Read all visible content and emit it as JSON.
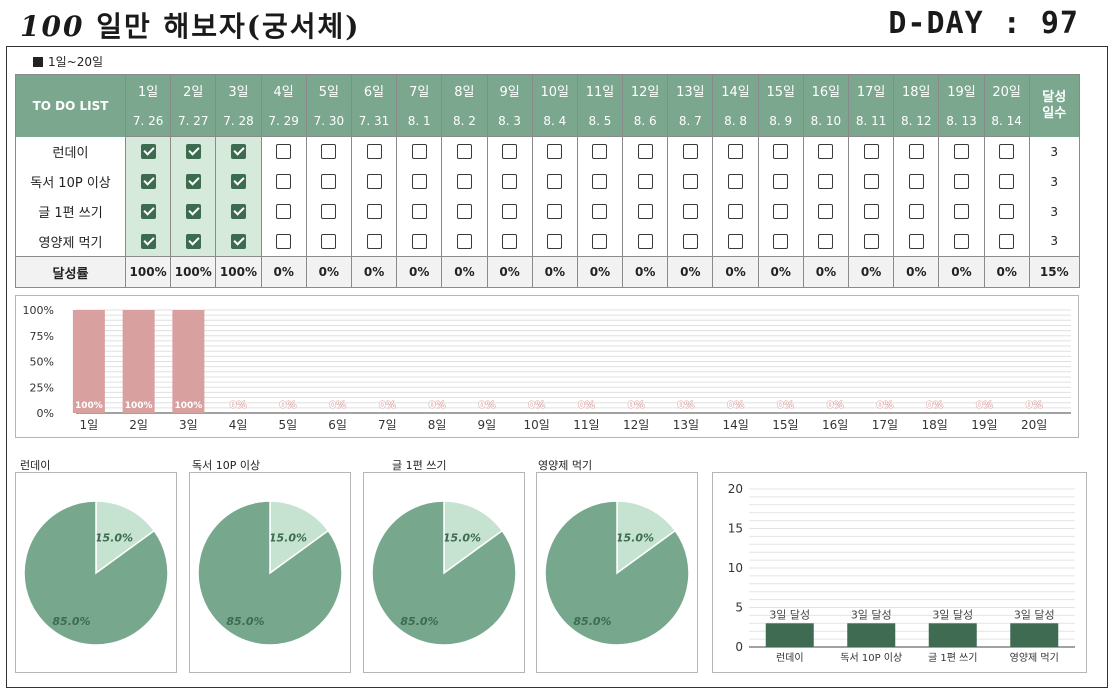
{
  "header": {
    "title_num": "100",
    "title_text": "일만 해보자(궁서체)",
    "dday": "D-DAY : 97"
  },
  "range_label": "1일~20일",
  "table": {
    "todo_header": "TO DO LIST",
    "achieve_header_1": "달성",
    "achieve_header_2": "일수",
    "days": [
      "1일",
      "2일",
      "3일",
      "4일",
      "5일",
      "6일",
      "7일",
      "8일",
      "9일",
      "10일",
      "11일",
      "12일",
      "13일",
      "14일",
      "15일",
      "16일",
      "17일",
      "18일",
      "19일",
      "20일"
    ],
    "dates": [
      "7. 26",
      "7. 27",
      "7. 28",
      "7. 29",
      "7. 30",
      "7. 31",
      "8. 1",
      "8. 2",
      "8. 3",
      "8. 4",
      "8. 5",
      "8. 6",
      "8. 7",
      "8. 8",
      "8. 9",
      "8. 10",
      "8. 11",
      "8. 12",
      "8. 13",
      "8. 14"
    ],
    "tasks": [
      {
        "name": "런데이",
        "checks": [
          true,
          true,
          true,
          false,
          false,
          false,
          false,
          false,
          false,
          false,
          false,
          false,
          false,
          false,
          false,
          false,
          false,
          false,
          false,
          false
        ],
        "count": "3"
      },
      {
        "name": "독서 10P 이상",
        "checks": [
          true,
          true,
          true,
          false,
          false,
          false,
          false,
          false,
          false,
          false,
          false,
          false,
          false,
          false,
          false,
          false,
          false,
          false,
          false,
          false
        ],
        "count": "3"
      },
      {
        "name": "글 1편 쓰기",
        "checks": [
          true,
          true,
          true,
          false,
          false,
          false,
          false,
          false,
          false,
          false,
          false,
          false,
          false,
          false,
          false,
          false,
          false,
          false,
          false,
          false
        ],
        "count": "3"
      },
      {
        "name": "영양제 먹기",
        "checks": [
          true,
          true,
          true,
          false,
          false,
          false,
          false,
          false,
          false,
          false,
          false,
          false,
          false,
          false,
          false,
          false,
          false,
          false,
          false,
          false
        ],
        "count": "3"
      }
    ],
    "rate_label": "달성률",
    "rates": [
      "100%",
      "100%",
      "100%",
      "0%",
      "0%",
      "0%",
      "0%",
      "0%",
      "0%",
      "0%",
      "0%",
      "0%",
      "0%",
      "0%",
      "0%",
      "0%",
      "0%",
      "0%",
      "0%",
      "0%"
    ],
    "total_rate": "15%"
  },
  "colors": {
    "header_green": "#7aa78e",
    "check_green": "#3d6b4f",
    "bar_pink": "#d9a0a0",
    "pie_dark": "#77a88e",
    "pie_light": "#c5e3d0",
    "bar_dark_green": "#3e6b52"
  },
  "chart_data": [
    {
      "type": "bar",
      "categories": [
        "1일",
        "2일",
        "3일",
        "4일",
        "5일",
        "6일",
        "7일",
        "8일",
        "9일",
        "10일",
        "11일",
        "12일",
        "13일",
        "14일",
        "15일",
        "16일",
        "17일",
        "18일",
        "19일",
        "20일"
      ],
      "values": [
        100,
        100,
        100,
        0,
        0,
        0,
        0,
        0,
        0,
        0,
        0,
        0,
        0,
        0,
        0,
        0,
        0,
        0,
        0,
        0
      ],
      "data_labels": [
        "100%",
        "100%",
        "100%",
        "0%",
        "0%",
        "0%",
        "0%",
        "0%",
        "0%",
        "0%",
        "0%",
        "0%",
        "0%",
        "0%",
        "0%",
        "0%",
        "0%",
        "0%",
        "0%",
        "0%"
      ],
      "yticks": [
        "0%",
        "25%",
        "50%",
        "75%",
        "100%"
      ],
      "ylim": [
        0,
        100
      ]
    },
    {
      "type": "pie",
      "title": "런데이",
      "values": [
        15.0,
        85.0
      ],
      "labels": [
        "15.0%",
        "85.0%"
      ]
    },
    {
      "type": "pie",
      "title": "독서 10P 이상",
      "values": [
        15.0,
        85.0
      ],
      "labels": [
        "15.0%",
        "85.0%"
      ]
    },
    {
      "type": "pie",
      "title": "글 1편 쓰기",
      "values": [
        15.0,
        85.0
      ],
      "labels": [
        "15.0%",
        "85.0%"
      ]
    },
    {
      "type": "pie",
      "title": "영양제 먹기",
      "values": [
        15.0,
        85.0
      ],
      "labels": [
        "15.0%",
        "85.0%"
      ]
    },
    {
      "type": "bar",
      "categories": [
        "런데이",
        "독서 10P 이상",
        "글 1편 쓰기",
        "영양제 먹기"
      ],
      "values": [
        3,
        3,
        3,
        3
      ],
      "data_labels": [
        "3일 달성",
        "3일 달성",
        "3일 달성",
        "3일 달성"
      ],
      "yticks": [
        "0",
        "5",
        "10",
        "15",
        "20"
      ],
      "ylim": [
        0,
        20
      ]
    }
  ]
}
